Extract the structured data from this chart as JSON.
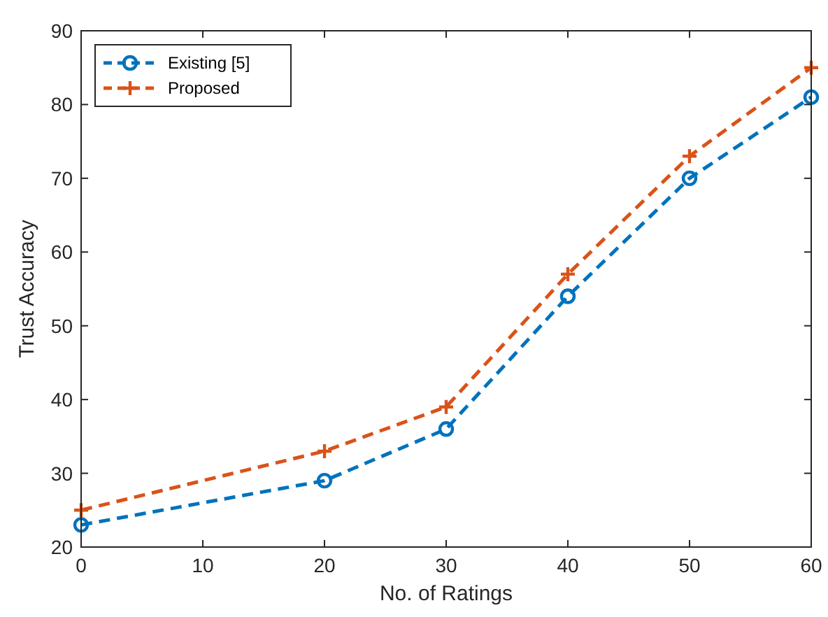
{
  "chart_data": {
    "type": "line",
    "xlabel": "No. of Ratings",
    "ylabel": "Trust Accuracy",
    "x": [
      0,
      20,
      30,
      40,
      50,
      60
    ],
    "series": [
      {
        "name": "Existing [5]",
        "color": "#0072bd",
        "marker": "circle",
        "values": [
          23,
          29,
          36,
          54,
          70,
          81
        ]
      },
      {
        "name": "Proposed",
        "color": "#d95319",
        "marker": "cross",
        "values": [
          25,
          33,
          39,
          57,
          73,
          85
        ]
      }
    ],
    "xlim": [
      0,
      60
    ],
    "xticks": [
      0,
      10,
      20,
      30,
      40,
      50,
      60
    ],
    "ylim": [
      20,
      90
    ],
    "yticks": [
      20,
      30,
      40,
      50,
      60,
      70,
      80,
      90
    ],
    "grid": false,
    "legend": "top left",
    "line_style": "dashed"
  }
}
